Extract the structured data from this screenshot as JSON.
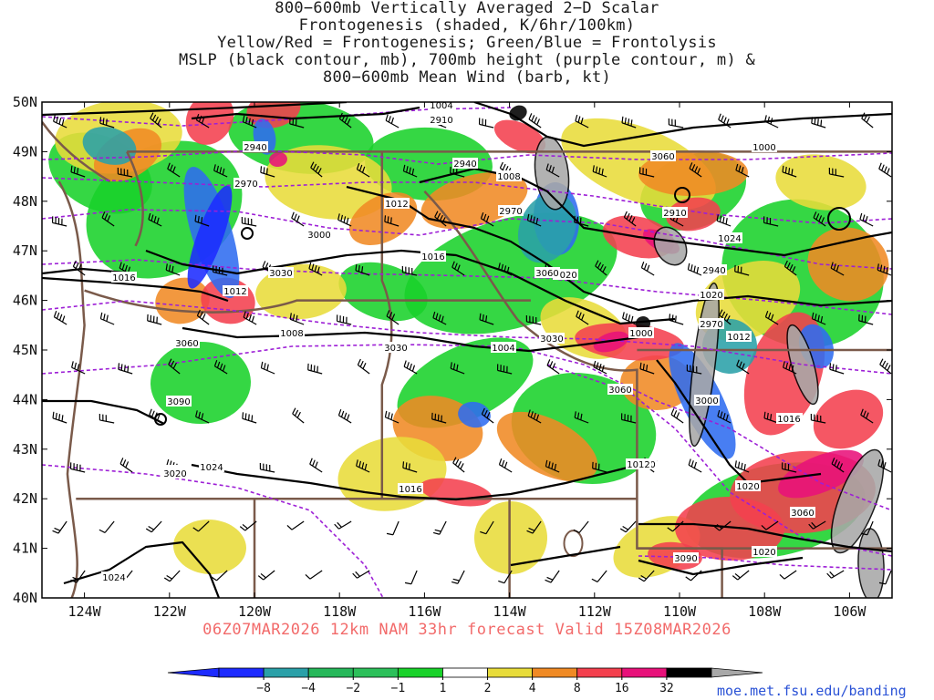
{
  "title": {
    "line1": "800−600mb Vertically Averaged 2−D Scalar",
    "line2": "Frontogenesis (shaded, K/6hr/100km)",
    "line3": "Yellow/Red = Frontogenesis;  Green/Blue = Frontolysis",
    "line4": "MSLP (black contour, mb), 700mb height (purple contour, m) &",
    "line5": "800−600mb Mean Wind (barb, kt)"
  },
  "footer": "06Z07MAR2026 12km NAM 33hr forecast Valid 15Z08MAR2026",
  "credit": "moe.met.fsu.edu/banding",
  "axes": {
    "lat_labels": [
      "50N",
      "49N",
      "48N",
      "47N",
      "46N",
      "45N",
      "44N",
      "43N",
      "42N",
      "41N",
      "40N"
    ],
    "lon_labels": [
      "124W",
      "122W",
      "120W",
      "118W",
      "116W",
      "114W",
      "112W",
      "110W",
      "108W",
      "106W"
    ]
  },
  "colors": {
    "strong_lysis": "#1d2bff",
    "blue": "#2f6cf0",
    "teal": "#2aa0a8",
    "green_mid": "#26b85a",
    "green": "#19d22a",
    "white": "#ffffff",
    "yellow": "#e8dc3a",
    "orange": "#f08a24",
    "red": "#f4404e",
    "magenta": "#e8117a",
    "black": "#000000",
    "gray": "#a8a8a8",
    "mslp": "#000000",
    "height": "#9d1fd6",
    "borders": "#7a5a4a"
  },
  "colorbar": {
    "ticks": [
      "−8",
      "−4",
      "−2",
      "−1",
      "1",
      "2",
      "4",
      "8",
      "16",
      "32"
    ]
  },
  "mslp_labels": [
    "1004",
    "1000",
    "1008",
    "1012",
    "1016",
    "1020",
    "1024",
    "1020",
    "1016",
    "1012",
    "1008",
    "1004",
    "1000",
    "1012",
    "1016",
    "1020",
    "1024",
    "1016",
    "1020",
    "1024",
    "1020",
    "1012",
    "1016"
  ],
  "height_labels": [
    "2910",
    "2940",
    "2970",
    "3000",
    "3030",
    "3060",
    "3090",
    "2940",
    "2970",
    "3000",
    "3030",
    "3060",
    "2910",
    "2940",
    "2970",
    "3000",
    "3030",
    "3060",
    "3090",
    "3000",
    "3030",
    "3060",
    "3060",
    "3090",
    "3020"
  ]
}
